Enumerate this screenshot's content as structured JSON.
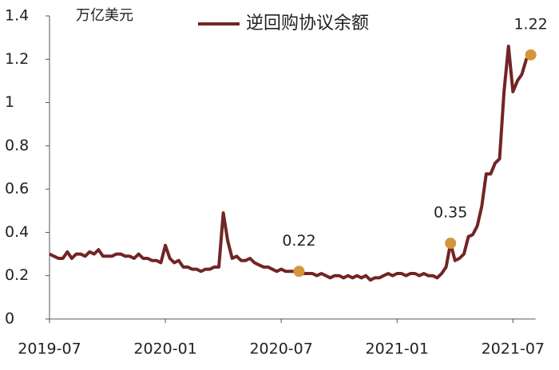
{
  "chart_data": {
    "type": "line",
    "y_label": "万亿美元",
    "categories": [
      "2019-07",
      null,
      null,
      null,
      null,
      null,
      null,
      null,
      null,
      null,
      null,
      null,
      null,
      null,
      null,
      null,
      null,
      null,
      null,
      null,
      null,
      null,
      null,
      null,
      null,
      null,
      "2020-01",
      null,
      null,
      null,
      null,
      null,
      null,
      null,
      null,
      null,
      null,
      null,
      null,
      null,
      null,
      null,
      null,
      null,
      null,
      null,
      null,
      null,
      null,
      null,
      null,
      null,
      "2020-07",
      null,
      null,
      null,
      null,
      null,
      null,
      null,
      null,
      null,
      null,
      null,
      null,
      null,
      null,
      null,
      null,
      null,
      null,
      null,
      null,
      null,
      null,
      null,
      null,
      null,
      "2021-01",
      null,
      null,
      null,
      null,
      null,
      null,
      null,
      null,
      null,
      null,
      null,
      null,
      null,
      null,
      null,
      null,
      null,
      null,
      null,
      null,
      null,
      null,
      null,
      null,
      null,
      "2021-07",
      null,
      null,
      null,
      null
    ],
    "series": [
      {
        "name": "逆回购协议余额",
        "color": "#722525",
        "values": [
          0.3,
          0.29,
          0.28,
          0.28,
          0.31,
          0.28,
          0.3,
          0.3,
          0.29,
          0.31,
          0.3,
          0.32,
          0.29,
          0.29,
          0.29,
          0.3,
          0.3,
          0.29,
          0.29,
          0.28,
          0.3,
          0.28,
          0.28,
          0.27,
          0.27,
          0.26,
          0.34,
          0.28,
          0.26,
          0.27,
          0.24,
          0.24,
          0.23,
          0.23,
          0.22,
          0.23,
          0.23,
          0.24,
          0.24,
          0.49,
          0.36,
          0.28,
          0.29,
          0.27,
          0.27,
          0.28,
          0.26,
          0.25,
          0.24,
          0.24,
          0.23,
          0.22,
          0.23,
          0.22,
          0.22,
          0.22,
          0.22,
          0.21,
          0.21,
          0.21,
          0.2,
          0.21,
          0.2,
          0.19,
          0.2,
          0.2,
          0.19,
          0.2,
          0.19,
          0.2,
          0.19,
          0.2,
          0.18,
          0.19,
          0.19,
          0.2,
          0.21,
          0.2,
          0.21,
          0.21,
          0.2,
          0.21,
          0.21,
          0.2,
          0.21,
          0.2,
          0.2,
          0.19,
          0.21,
          0.24,
          0.35,
          0.27,
          0.28,
          0.3,
          0.38,
          0.39,
          0.43,
          0.52,
          0.67,
          0.67,
          0.72,
          0.74,
          1.05,
          1.26,
          1.05,
          1.1,
          1.13,
          1.2,
          1.22
        ],
        "value_labels": [
          null,
          null,
          null,
          null,
          null,
          null,
          null,
          null,
          null,
          null,
          null,
          null,
          null,
          null,
          null,
          null,
          null,
          null,
          null,
          null,
          null,
          null,
          null,
          null,
          null,
          null,
          null,
          null,
          null,
          null,
          null,
          null,
          null,
          null,
          null,
          null,
          null,
          null,
          null,
          null,
          null,
          null,
          null,
          null,
          null,
          null,
          null,
          null,
          null,
          null,
          null,
          null,
          null,
          null,
          null,
          null,
          "0.22",
          null,
          null,
          null,
          null,
          null,
          null,
          null,
          null,
          null,
          null,
          null,
          null,
          null,
          null,
          null,
          null,
          null,
          null,
          null,
          null,
          null,
          null,
          null,
          null,
          null,
          null,
          null,
          null,
          null,
          null,
          null,
          null,
          null,
          "0.35",
          null,
          null,
          null,
          null,
          null,
          null,
          null,
          null,
          null,
          null,
          null,
          null,
          null,
          null,
          null,
          null,
          null,
          "1.22"
        ]
      }
    ],
    "marker_color": "#d4963c",
    "ylim": [
      0,
      1.4
    ],
    "yticks": [
      0,
      0.2,
      0.4,
      0.6,
      0.8,
      1,
      1.2,
      1.4
    ],
    "legend": "top"
  }
}
